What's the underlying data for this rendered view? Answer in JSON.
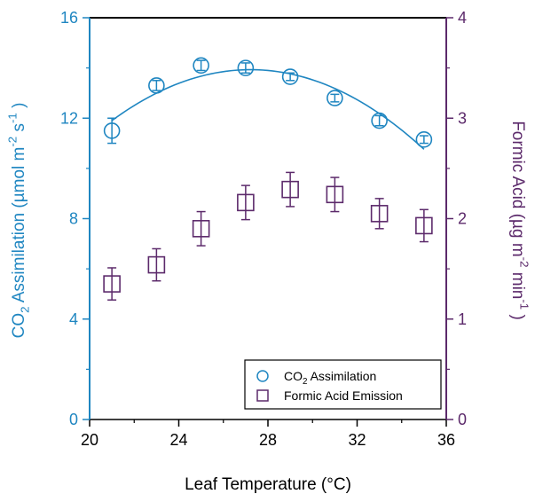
{
  "chart_data": {
    "type": "scatter",
    "xlabel": "Leaf Temperature (°C)",
    "xlim": [
      20,
      36
    ],
    "x_ticks": [
      20,
      24,
      28,
      32,
      36
    ],
    "y_left": {
      "label_parts": [
        "CO",
        "2",
        " Assimilation (µmol m",
        "-2",
        " s",
        "-1",
        " )"
      ],
      "ylim": [
        0,
        16
      ],
      "ticks": [
        0,
        4,
        8,
        12,
        16
      ],
      "color": "#1f86c1"
    },
    "y_right": {
      "label_parts": [
        "Formic Acid (µg m",
        "-2",
        " min",
        "-1",
        " )"
      ],
      "ylim": [
        0,
        4
      ],
      "ticks": [
        0,
        1,
        2,
        3,
        4
      ],
      "color": "#5c2a6b"
    },
    "series": [
      {
        "name_parts": [
          "CO",
          "2",
          " Assimilation"
        ],
        "axis": "left",
        "marker": "circle",
        "color": "#1f86c1",
        "x": [
          21,
          23,
          25,
          27,
          29,
          31,
          33,
          35
        ],
        "y": [
          11.5,
          13.3,
          14.1,
          14.0,
          13.65,
          12.8,
          11.9,
          11.15
        ],
        "err": [
          0.5,
          0.2,
          0.2,
          0.2,
          0.15,
          0.15,
          0.2,
          0.15
        ],
        "fit_curve": true
      },
      {
        "name_parts": [
          "Formic Acid Emission"
        ],
        "axis": "right",
        "marker": "square",
        "color": "#5c2a6b",
        "x": [
          21,
          23,
          25,
          27,
          29,
          31,
          33,
          35
        ],
        "y": [
          1.35,
          1.54,
          1.9,
          2.16,
          2.29,
          2.24,
          2.05,
          1.93
        ],
        "err": [
          0.16,
          0.16,
          0.17,
          0.17,
          0.17,
          0.17,
          0.15,
          0.16
        ]
      }
    ],
    "legend": "bottom-right",
    "grid": false
  }
}
